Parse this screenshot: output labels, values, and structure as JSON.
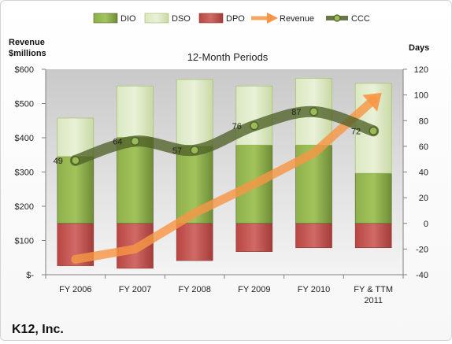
{
  "chart_data": {
    "type": "combo",
    "title": "12-Month Periods",
    "company": "K12, Inc.",
    "left_axis": {
      "title_lines": [
        "Revenue",
        "$millions"
      ],
      "min": 0,
      "max": 600,
      "step": 100,
      "tick_labels": [
        "$-",
        "$100",
        "$200",
        "$300",
        "$400",
        "$500",
        "$600"
      ]
    },
    "right_axis": {
      "title": "Days",
      "min": -40,
      "max": 120,
      "step": 20,
      "tick_labels": [
        "-40",
        "-20",
        "0",
        "20",
        "40",
        "60",
        "80",
        "100",
        "120"
      ]
    },
    "categories": [
      {
        "line1": "FY 2006",
        "line2": ""
      },
      {
        "line1": "FY 2007",
        "line2": ""
      },
      {
        "line1": "FY 2008",
        "line2": ""
      },
      {
        "line1": "FY 2009",
        "line2": ""
      },
      {
        "line1": "FY 2010",
        "line2": ""
      },
      {
        "line1": "FY & TTM",
        "line2": "2011"
      }
    ],
    "series": [
      {
        "name": "DIO",
        "axis": "right",
        "kind": "bar",
        "values": [
          52,
          67,
          60,
          61,
          61,
          39
        ],
        "color": "#77933c"
      },
      {
        "name": "DSO",
        "axis": "right",
        "kind": "bar",
        "values": [
          30,
          40,
          52,
          46,
          52,
          70
        ],
        "color": "#d7e4bd"
      },
      {
        "name": "DPO",
        "axis": "right",
        "kind": "bar",
        "values": [
          -33,
          -35,
          -29,
          -22,
          -19,
          -19
        ],
        "color": "#c0504d"
      },
      {
        "name": "Revenue",
        "axis": "left",
        "kind": "arrow-line",
        "values": [
          45,
          75,
          180,
          265,
          355,
          510
        ],
        "color": "#f79646"
      },
      {
        "name": "CCC",
        "axis": "right",
        "kind": "line",
        "values": [
          49,
          64,
          57,
          76,
          87,
          72
        ],
        "labels": [
          "49",
          "64",
          "57",
          "76",
          "87",
          "72"
        ],
        "color": "#4f6228"
      }
    ],
    "legend_position": "top",
    "grid": false
  }
}
